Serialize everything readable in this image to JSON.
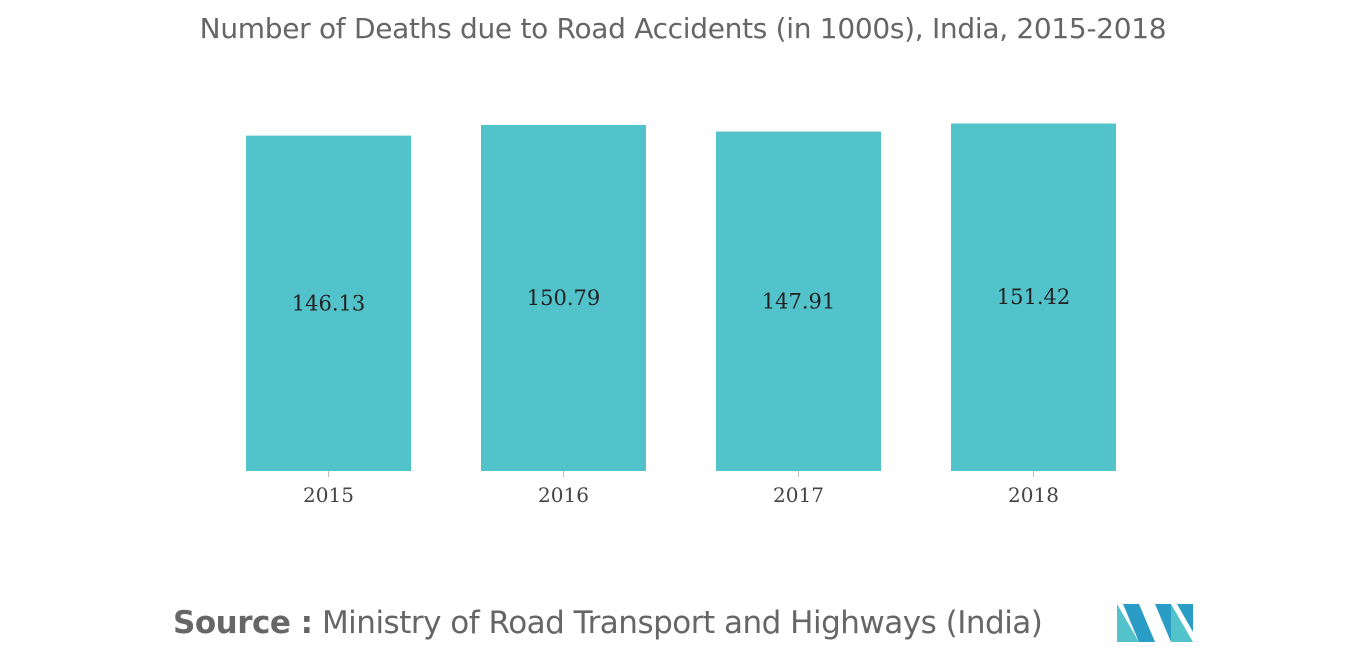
{
  "chart_data": {
    "type": "bar",
    "title": "Number of Deaths due to Road Accidents (in 1000s), India, 2015-2018",
    "categories": [
      "2015",
      "2016",
      "2017",
      "2018"
    ],
    "values": [
      146.13,
      150.79,
      147.91,
      151.42
    ],
    "value_labels": [
      "146.13",
      "150.79",
      "147.91",
      "151.42"
    ],
    "xlabel": "",
    "ylabel": "",
    "grid": false,
    "legend": "none",
    "bar_color": "#52C3CB",
    "ylim": [
      0,
      152
    ]
  },
  "source": {
    "label": "Source :",
    "text": "Ministry of Road Transport and Highways (India)"
  },
  "logo": {
    "icon": "mordor-intelligence-logo-icon",
    "colors": [
      "#2A9DC7",
      "#52C3CB",
      "#1E3F6E"
    ]
  }
}
